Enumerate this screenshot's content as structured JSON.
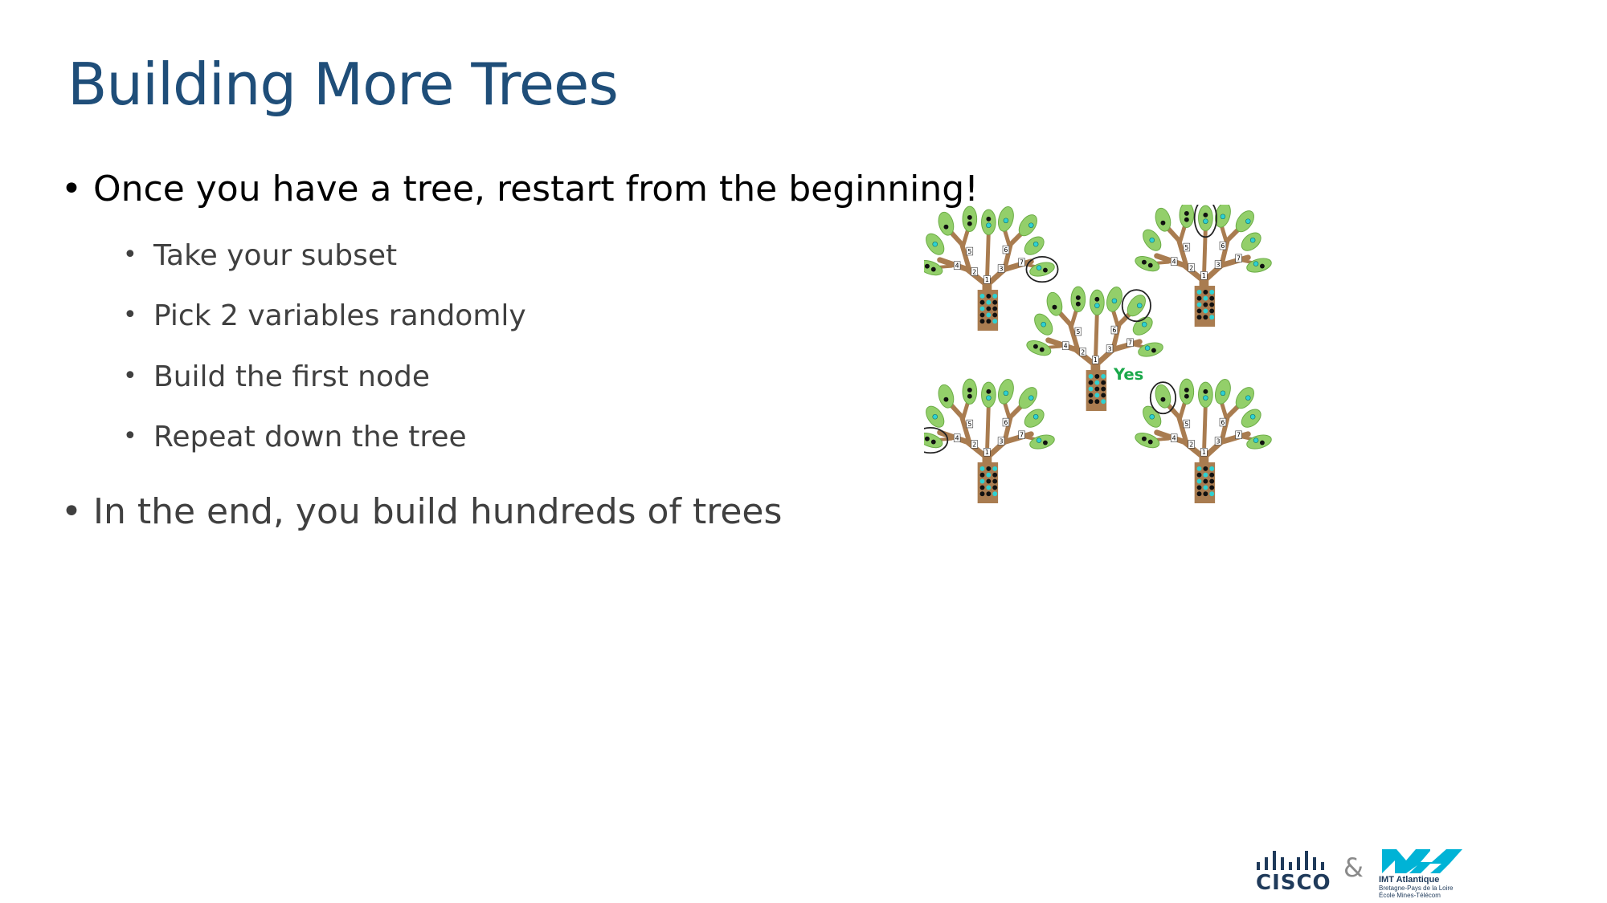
{
  "slide": {
    "title": "Building More Trees"
  },
  "bullets": [
    {
      "level": 1,
      "text": "Once you have a tree, restart from the beginning!"
    },
    {
      "level": 2,
      "text": "Take your subset"
    },
    {
      "level": 2,
      "text": "Pick 2 variables randomly"
    },
    {
      "level": 2,
      "text": "Build the first node"
    },
    {
      "level": 2,
      "text": "Repeat down the tree"
    },
    {
      "level": 1,
      "text": "In the end, you build hundreds of trees"
    }
  ],
  "bullet_glyph": "•",
  "figure": {
    "branch_numbers": [
      "1",
      "2",
      "3",
      "4",
      "5",
      "6",
      "7"
    ],
    "vote_label": "Yes",
    "colors": {
      "leaf": "#93cf6a",
      "leaf_dark": "#6aab45",
      "trunk": "#a97c50",
      "dot_cyan": "#2fd1d1",
      "dot_black": "#111111",
      "vote": "#1aa84a"
    },
    "icons": [
      "tree-icon",
      "leaf-icon",
      "circle-highlight-icon"
    ]
  },
  "footer": {
    "cisco_word": "CISCO",
    "ampersand": "&",
    "imt_name": "IMT Atlantique",
    "imt_line1": "Bretagne-Pays de la Loire",
    "imt_line2": "École Mines-Télécom",
    "brand_colors": {
      "cisco": "#1f3a5a",
      "imt": "#00b3d6"
    }
  }
}
